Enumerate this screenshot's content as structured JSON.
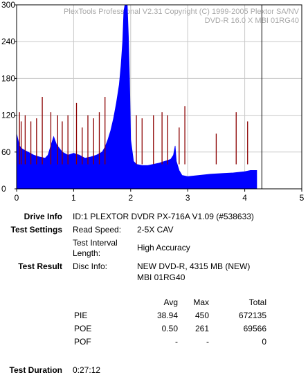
{
  "chart_data": {
    "type": "bar",
    "watermark": [
      "PlexTools Professional V2.31 Copyright (C) 1999-2005 Plextor SA/NV",
      "DVD-R    16.0 X    MBI 01RG40"
    ],
    "xlim": [
      0,
      5
    ],
    "ylim": [
      0,
      300
    ],
    "x_ticks": [
      "0",
      "1",
      "2",
      "3",
      "4",
      "5"
    ],
    "y_ticks": [
      "0",
      "60",
      "120",
      "180",
      "240",
      "300"
    ],
    "end_marker_x": 4.3,
    "data_end_x": 4.21,
    "grid": true,
    "series": [
      {
        "name": "PIE",
        "color": "#0000ff",
        "x": [
          0.0,
          0.05,
          0.1,
          0.2,
          0.3,
          0.4,
          0.5,
          0.55,
          0.6,
          0.65,
          0.7,
          0.8,
          0.9,
          1.0,
          1.1,
          1.2,
          1.3,
          1.4,
          1.5,
          1.55,
          1.6,
          1.65,
          1.7,
          1.75,
          1.8,
          1.83,
          1.86,
          1.88,
          1.9,
          1.92,
          1.94,
          1.96,
          1.98,
          2.0,
          2.05,
          2.1,
          2.2,
          2.3,
          2.4,
          2.5,
          2.6,
          2.7,
          2.75,
          2.78,
          2.8,
          2.85,
          2.9,
          3.0,
          3.2,
          3.4,
          3.6,
          3.8,
          4.0,
          4.1,
          4.21
        ],
        "y": [
          90,
          70,
          65,
          60,
          55,
          52,
          50,
          55,
          70,
          85,
          72,
          60,
          55,
          58,
          55,
          50,
          52,
          55,
          60,
          68,
          80,
          95,
          115,
          140,
          170,
          200,
          240,
          290,
          300,
          300,
          300,
          250,
          180,
          80,
          45,
          40,
          38,
          38,
          40,
          42,
          45,
          48,
          55,
          70,
          45,
          30,
          22,
          20,
          22,
          24,
          25,
          26,
          28,
          30,
          30
        ]
      },
      {
        "name": "PIE spikes",
        "color": "#8b0000",
        "x": [
          0.05,
          0.08,
          0.15,
          0.25,
          0.35,
          0.45,
          0.6,
          0.72,
          0.8,
          0.9,
          1.05,
          1.15,
          1.25,
          1.35,
          1.45,
          1.55,
          2.1,
          2.2,
          2.4,
          2.55,
          2.65,
          2.85,
          2.95,
          3.5,
          3.85,
          4.05
        ],
        "y": [
          125,
          110,
          120,
          110,
          115,
          150,
          125,
          120,
          110,
          120,
          140,
          100,
          120,
          115,
          125,
          150,
          120,
          115,
          120,
          125,
          120,
          100,
          135,
          90,
          125,
          110
        ]
      }
    ]
  },
  "info": {
    "drive_info_label": "Drive Info",
    "drive_info_value": "ID:1 PLEXTOR DVDR PX-716A V1.09 (#538633)",
    "test_settings_label": "Test Settings",
    "read_speed_label": "Read Speed:",
    "read_speed_value": "2-5X CAV",
    "interval_label_1": "Test Interval",
    "interval_label_2": "Length:",
    "interval_value": "High Accuracy",
    "test_result_label": "Test Result",
    "disc_info_label": "Disc Info:",
    "disc_info_value_1": "NEW DVD-R, 4315 MB (NEW)",
    "disc_info_value_2": "MBI 01RG40",
    "test_duration_label": "Test Duration",
    "test_duration_value": "0:27:12"
  },
  "results_table": {
    "headers": [
      "Avg",
      "Max",
      "Total"
    ],
    "rows": [
      {
        "name": "PIE",
        "avg": "38.94",
        "max": "450",
        "total": "672135"
      },
      {
        "name": "POE",
        "avg": "0.50",
        "max": "261",
        "total": "69566"
      },
      {
        "name": "POF",
        "avg": "-",
        "max": "-",
        "total": "0"
      }
    ]
  }
}
